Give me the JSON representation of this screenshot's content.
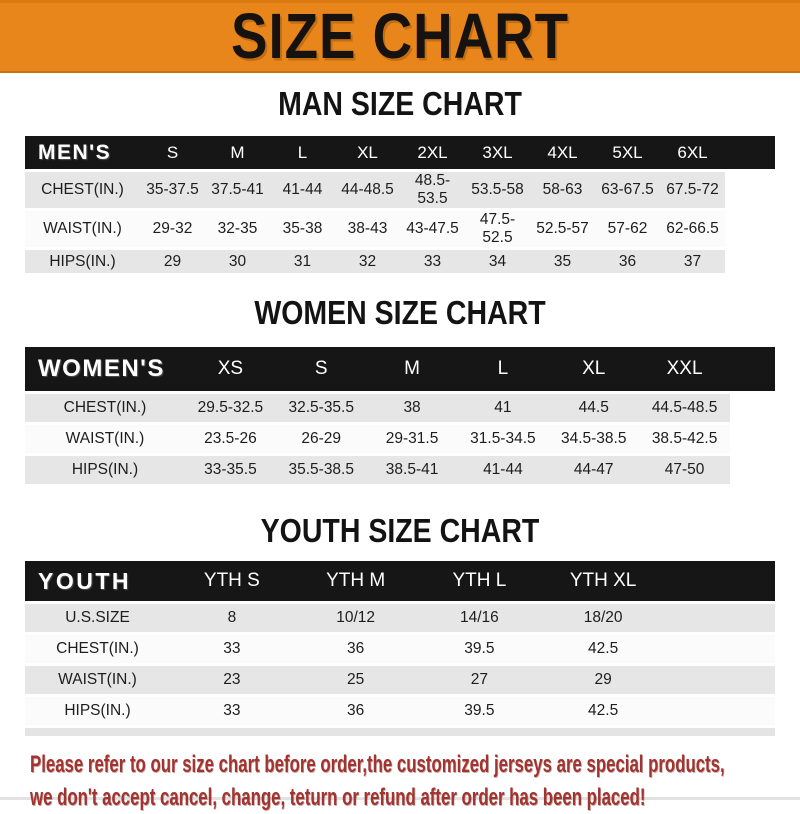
{
  "banner": {
    "title": "SIZE CHART"
  },
  "sections": [
    {
      "heading": "MAN SIZE CHART",
      "header_label": "MEN'S",
      "columns": [
        "S",
        "M",
        "L",
        "XL",
        "2XL",
        "3XL",
        "4XL",
        "5XL",
        "6XL"
      ],
      "rows": [
        {
          "label": "CHEST(IN.)",
          "values": [
            "35-37.5",
            "37.5-41",
            "41-44",
            "44-48.5",
            "48.5-53.5",
            "53.5-58",
            "58-63",
            "63-67.5",
            "67.5-72"
          ]
        },
        {
          "label": "WAIST(IN.)",
          "values": [
            "29-32",
            "32-35",
            "35-38",
            "38-43",
            "43-47.5",
            "47.5-52.5",
            "52.5-57",
            "57-62",
            "62-66.5"
          ]
        },
        {
          "label": "HIPS(IN.)",
          "values": [
            "29",
            "30",
            "31",
            "32",
            "33",
            "34",
            "35",
            "36",
            "37"
          ]
        }
      ]
    },
    {
      "heading": "WOMEN SIZE CHART",
      "header_label": "WOMEN'S",
      "columns": [
        "XS",
        "S",
        "M",
        "L",
        "XL",
        "XXL"
      ],
      "rows": [
        {
          "label": "CHEST(IN.)",
          "values": [
            "29.5-32.5",
            "32.5-35.5",
            "38",
            "41",
            "44.5",
            "44.5-48.5"
          ]
        },
        {
          "label": "WAIST(IN.)",
          "values": [
            "23.5-26",
            "26-29",
            "29-31.5",
            "31.5-34.5",
            "34.5-38.5",
            "38.5-42.5"
          ]
        },
        {
          "label": "HIPS(IN.)",
          "values": [
            "33-35.5",
            "35.5-38.5",
            "38.5-41",
            "41-44",
            "44-47",
            "47-50"
          ]
        }
      ]
    },
    {
      "heading": "YOUTH SIZE CHART",
      "header_label": "YOUTH",
      "columns": [
        "YTH S",
        "YTH M",
        "YTH L",
        "YTH XL"
      ],
      "rows": [
        {
          "label": "U.S.SIZE",
          "values": [
            "8",
            "10/12",
            "14/16",
            "18/20"
          ]
        },
        {
          "label": "CHEST(IN.)",
          "values": [
            "33",
            "36",
            "39.5",
            "42.5"
          ]
        },
        {
          "label": "WAIST(IN.)",
          "values": [
            "23",
            "25",
            "27",
            "29"
          ]
        },
        {
          "label": "HIPS(IN.)",
          "values": [
            "33",
            "36",
            "39.5",
            "42.5"
          ]
        }
      ]
    }
  ],
  "footer": {
    "line1": "Please refer to our size chart before order,the customized jerseys are special products,",
    "line2": "we don't accept cancel, change, teturn or refund after order has been placed!"
  },
  "colors": {
    "banner_orange": "#E8861C",
    "header_bar_black": "#161616",
    "row_shade_gray": "#E6E6E6",
    "note_red": "#A3332E"
  }
}
